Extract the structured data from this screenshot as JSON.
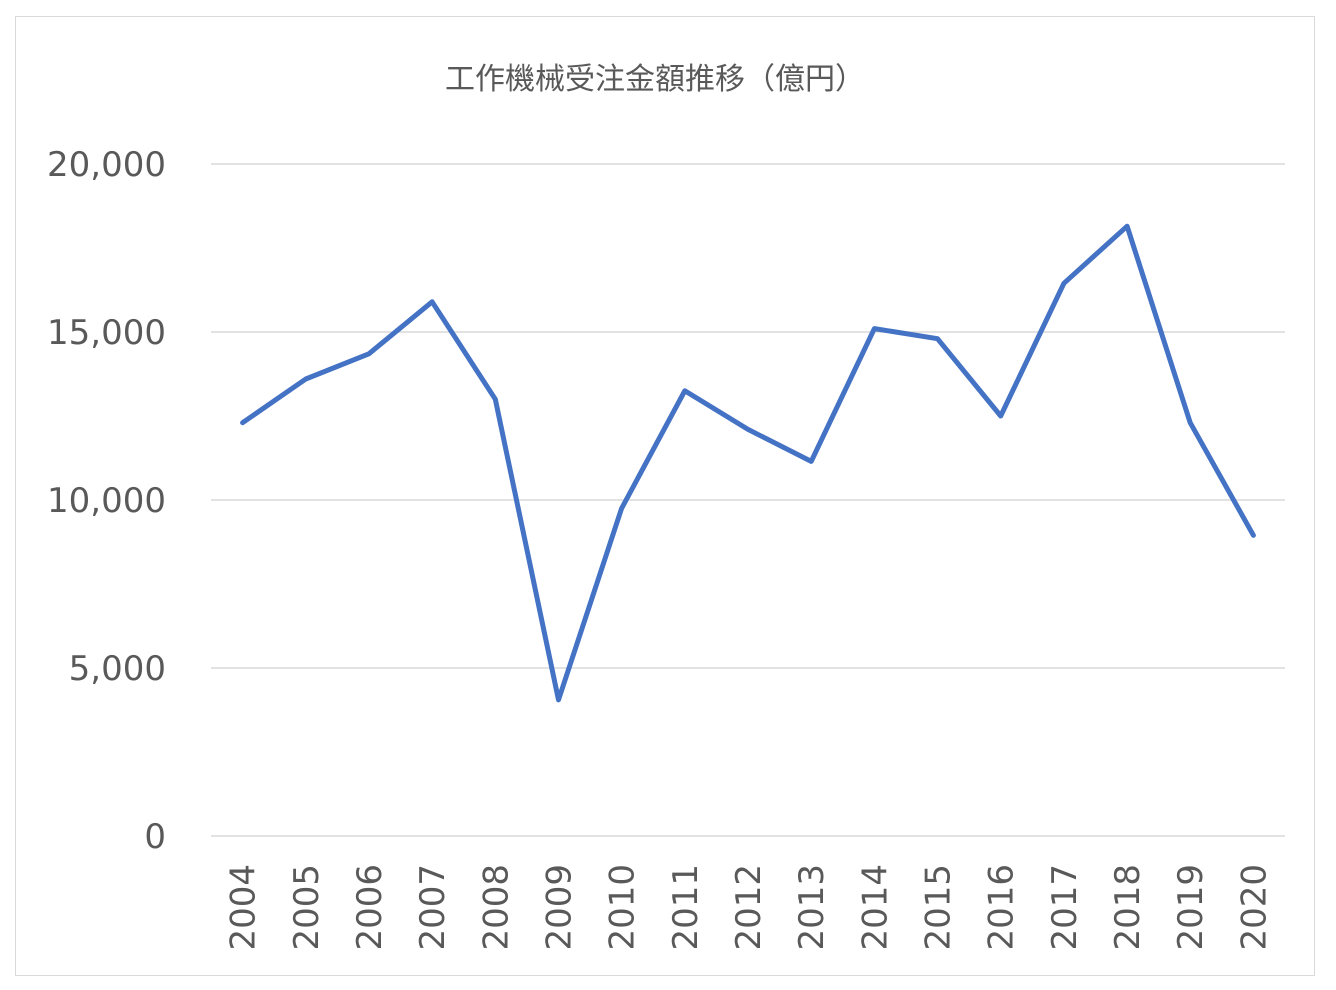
{
  "chart_data": {
    "type": "line",
    "title": "工作機械受注金額推移（億円）",
    "xlabel": "",
    "ylabel": "",
    "ylim": [
      0,
      20000
    ],
    "yticks": [
      0,
      5000,
      10000,
      15000,
      20000
    ],
    "ytick_labels": [
      "0",
      "5,000",
      "10,000",
      "15,000",
      "20,000"
    ],
    "grid": true,
    "legend": "none",
    "categories": [
      "2004",
      "2005",
      "2006",
      "2007",
      "2008",
      "2009",
      "2010",
      "2011",
      "2012",
      "2013",
      "2014",
      "2015",
      "2016",
      "2017",
      "2018",
      "2019",
      "2020"
    ],
    "series": [
      {
        "color": "#4472C4",
        "values": [
          12300,
          13600,
          14350,
          15900,
          13000,
          4050,
          9750,
          13250,
          12100,
          11150,
          15100,
          14800,
          12500,
          16450,
          18150,
          12300,
          8950
        ]
      }
    ]
  }
}
